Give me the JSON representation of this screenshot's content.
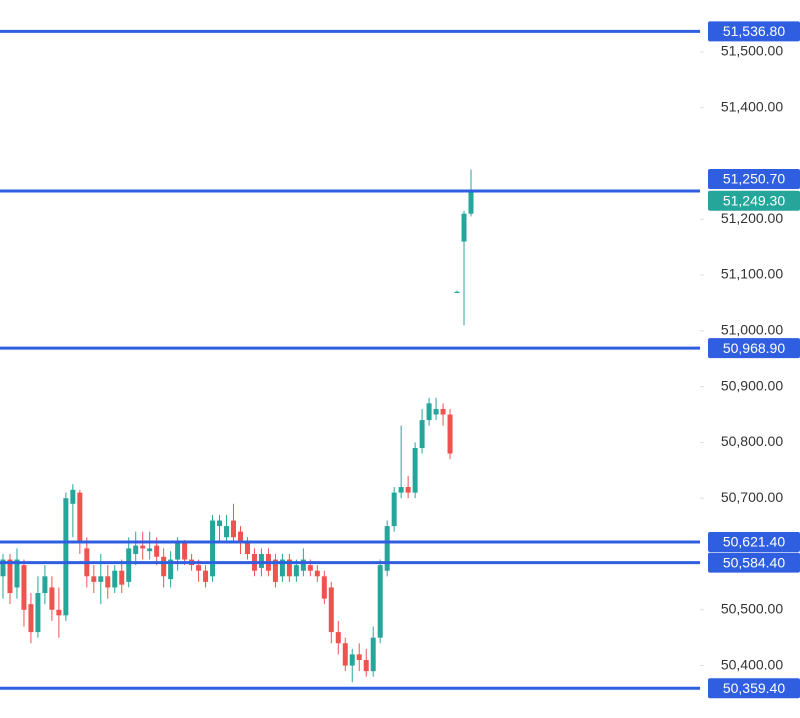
{
  "chart_data": {
    "type": "candlestick",
    "up_color": "#26a69a",
    "down_color": "#ef5350",
    "line_color": "#2f5fe0",
    "last_color": "#26a69a",
    "ylim": [
      50306,
      51593
    ],
    "yticks": [
      {
        "value": 50400,
        "label": "50,400.00"
      },
      {
        "value": 50500,
        "label": "50,500.00"
      },
      {
        "value": 50700,
        "label": "50,700.00"
      },
      {
        "value": 50800,
        "label": "50,800.00"
      },
      {
        "value": 50900,
        "label": "50,900.00"
      },
      {
        "value": 51000,
        "label": "51,000.00"
      },
      {
        "value": 51100,
        "label": "51,100.00"
      },
      {
        "value": 51200,
        "label": "51,200.00"
      },
      {
        "value": 51400,
        "label": "51,400.00"
      },
      {
        "value": 51500,
        "label": "51,500.00"
      }
    ],
    "levels": [
      {
        "value": 51536.8,
        "label": "51,536.80"
      },
      {
        "value": 51250.7,
        "label": "51,250.70"
      },
      {
        "value": 50968.9,
        "label": "50,968.90"
      },
      {
        "value": 50621.4,
        "label": "50,621.40"
      },
      {
        "value": 50584.4,
        "label": "50,584.40"
      },
      {
        "value": 50359.4,
        "label": "50,359.40"
      }
    ],
    "last_price": {
      "value": 51249.3,
      "label": "51,249.30"
    },
    "open": [
      50560,
      50590,
      50540,
      50580,
      50510,
      50460,
      50530,
      50540,
      50500,
      50490,
      50690,
      50710,
      50610,
      50560,
      50550,
      50560,
      50540,
      50570,
      50550,
      50600,
      50615,
      50605,
      50615,
      50595,
      50555,
      50590,
      50620,
      50590,
      50580,
      50570,
      50560,
      50650,
      50630,
      50660,
      50640,
      50620,
      50600,
      50575,
      50600,
      50590,
      50560,
      50590,
      50560,
      50570,
      50580,
      50570,
      50560,
      50540,
      50460,
      50440,
      50400,
      50420,
      50410,
      50390,
      50450,
      50570,
      50650,
      50710,
      50720,
      50710,
      50790,
      50840,
      50850,
      50860,
      50850,
      51070,
      51160,
      51210
    ],
    "high": [
      50600,
      50600,
      50610,
      50590,
      50530,
      50560,
      50580,
      50560,
      50540,
      50710,
      50725,
      50715,
      50630,
      50580,
      50600,
      50580,
      50580,
      50590,
      50630,
      50640,
      50640,
      50640,
      50630,
      50610,
      50605,
      50630,
      50625,
      50600,
      50590,
      50580,
      50670,
      50670,
      50670,
      50690,
      50650,
      50630,
      50610,
      50610,
      50610,
      50600,
      50600,
      50600,
      50590,
      50610,
      50590,
      50580,
      50570,
      50550,
      50480,
      50450,
      50430,
      50440,
      50430,
      50470,
      50590,
      50660,
      50720,
      50830,
      50740,
      50800,
      50860,
      50880,
      50880,
      50870,
      50860,
      51072,
      51215,
      51289
    ],
    "low": [
      50520,
      50510,
      50520,
      50470,
      50440,
      50450,
      50510,
      50480,
      50450,
      50480,
      50630,
      50600,
      50540,
      50530,
      50510,
      50520,
      50530,
      50530,
      50540,
      50580,
      50590,
      50590,
      50580,
      50540,
      50540,
      50570,
      50580,
      50570,
      50550,
      50540,
      50550,
      50620,
      50620,
      50620,
      50600,
      50590,
      50560,
      50560,
      50560,
      50540,
      50550,
      50550,
      50550,
      50560,
      50560,
      50550,
      50510,
      50440,
      50420,
      50390,
      50370,
      50390,
      50380,
      50380,
      50440,
      50560,
      50640,
      50700,
      50700,
      50700,
      50780,
      50830,
      50840,
      50830,
      50770,
      51068,
      51010,
      51205
    ],
    "close": [
      50590,
      50530,
      50590,
      50500,
      50460,
      50530,
      50560,
      50500,
      50490,
      50700,
      50715,
      50620,
      50560,
      50550,
      50560,
      50540,
      50570,
      50545,
      50610,
      50615,
      50610,
      50610,
      50595,
      50560,
      50590,
      50620,
      50590,
      50580,
      50570,
      50550,
      50660,
      50660,
      50650,
      50630,
      50620,
      50600,
      50570,
      50600,
      50570,
      50550,
      50590,
      50560,
      50580,
      50590,
      50570,
      50560,
      50520,
      50460,
      50440,
      50400,
      50420,
      50410,
      50390,
      50450,
      50580,
      50650,
      50710,
      50720,
      50710,
      50790,
      50840,
      50870,
      50860,
      50850,
      50780,
      51070,
      51210,
      51249.3
    ]
  }
}
